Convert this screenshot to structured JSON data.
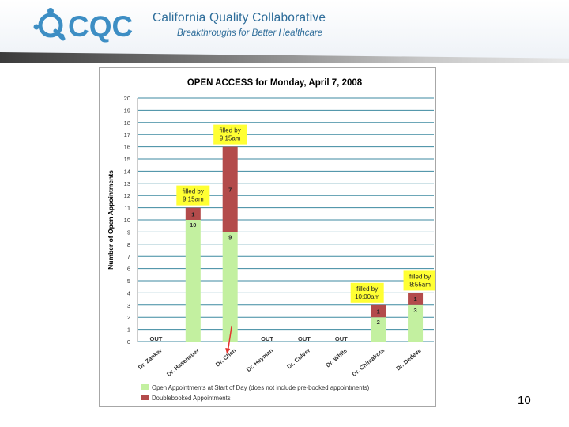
{
  "header": {
    "logo_text": "CQC",
    "org_name": "California Quality Collaborative",
    "tagline": "Breakthroughs for Better Healthcare"
  },
  "page_number": "10",
  "colors": {
    "open": "#c3f0a0",
    "doublebooked": "#b34b4b",
    "grid": "#3d8aa0",
    "callout": "#ffff33",
    "arrow": "#e3342f",
    "brand": "#2e6d9a"
  },
  "chart_data": {
    "type": "bar",
    "stacked": true,
    "title": "OPEN ACCESS for Monday, April 7, 2008",
    "ylabel": "Number of Open Appointments",
    "xlabel": "",
    "ylim": [
      0,
      20
    ],
    "yticks": [
      0,
      1,
      2,
      3,
      4,
      5,
      6,
      7,
      8,
      9,
      10,
      11,
      12,
      13,
      14,
      15,
      16,
      17,
      18,
      19,
      20
    ],
    "grid": true,
    "categories": [
      "Dr. Zanker",
      "Dr. Hasenauer",
      "Dr. Chen",
      "Dr. Heyman",
      "Dr. Culver",
      "Dr. White",
      "Dr. Chimakota",
      "Dr. Dedeve"
    ],
    "series": [
      {
        "name": "Open Appointments at Start of Day (does not include pre-booked appointments)",
        "values": [
          0,
          10,
          9,
          0,
          0,
          0,
          2,
          3
        ]
      },
      {
        "name": "Doublebooked Appointments",
        "values": [
          0,
          1,
          7,
          0,
          0,
          0,
          1,
          1
        ]
      }
    ],
    "out_labels": [
      {
        "category": "Dr. Zanker",
        "text": "OUT"
      },
      {
        "category": "Dr. Heyman",
        "text": "OUT"
      },
      {
        "category": "Dr. Culver",
        "text": "OUT"
      },
      {
        "category": "Dr. White",
        "text": "OUT"
      }
    ],
    "callouts": [
      {
        "category": "Dr. Hasenauer",
        "lines": [
          "filled by",
          "9:15am"
        ]
      },
      {
        "category": "Dr. Chen",
        "lines": [
          "filled by",
          "9:15am"
        ]
      },
      {
        "category": "Dr. Chimakota",
        "lines": [
          "filled by",
          "10:00am"
        ]
      },
      {
        "category": "Dr. Dedeve",
        "lines": [
          "filled by",
          "8:55am"
        ]
      }
    ],
    "legend_position": "bottom",
    "annotation_arrow": {
      "category": "Dr. Chen"
    }
  }
}
